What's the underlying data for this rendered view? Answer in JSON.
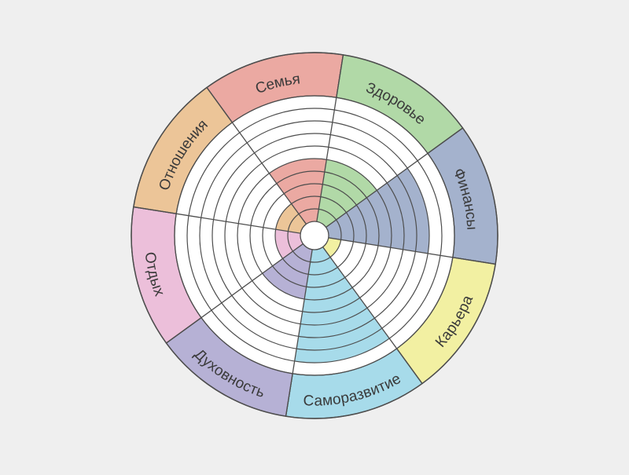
{
  "chart_data": {
    "type": "radial-bar",
    "title": "",
    "scale_max": 10,
    "categories": [
      "Семья",
      "Здоровье",
      "Финансы",
      "Карьера",
      "Саморазвитие",
      "Духовность",
      "Отдых",
      "Отношения"
    ],
    "values": [
      5,
      5,
      8,
      1,
      9,
      4,
      2,
      2
    ],
    "colors": [
      "#eba9a2",
      "#b1d9a7",
      "#a4b2cd",
      "#f2f0a2",
      "#a7dbea",
      "#b6b1d5",
      "#ecbfda",
      "#ecc598"
    ],
    "grid": true
  }
}
